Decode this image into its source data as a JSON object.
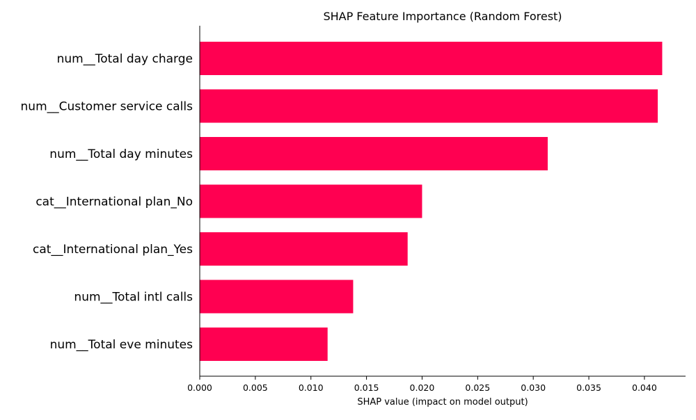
{
  "chart_data": {
    "type": "bar",
    "orientation": "horizontal",
    "title": "SHAP Feature Importance (Random Forest)",
    "xlabel": "SHAP value (impact on model output)",
    "ylabel": "",
    "categories": [
      "num__Total day charge",
      "num__Customer service calls",
      "num__Total day minutes",
      "cat__International plan_No",
      "cat__International plan_Yes",
      "num__Total intl calls",
      "num__Total eve minutes"
    ],
    "values": [
      0.0416,
      0.0412,
      0.0313,
      0.02,
      0.0187,
      0.0138,
      0.0115
    ],
    "xlim": [
      0.0,
      0.0437
    ],
    "xticks": [
      0.0,
      0.005,
      0.01,
      0.015,
      0.02,
      0.025,
      0.03,
      0.035,
      0.04
    ],
    "xtick_labels": [
      "0.000",
      "0.005",
      "0.010",
      "0.015",
      "0.020",
      "0.025",
      "0.030",
      "0.035",
      "0.040"
    ],
    "bar_color": "#ff0051",
    "grid": false,
    "legend": "none"
  }
}
